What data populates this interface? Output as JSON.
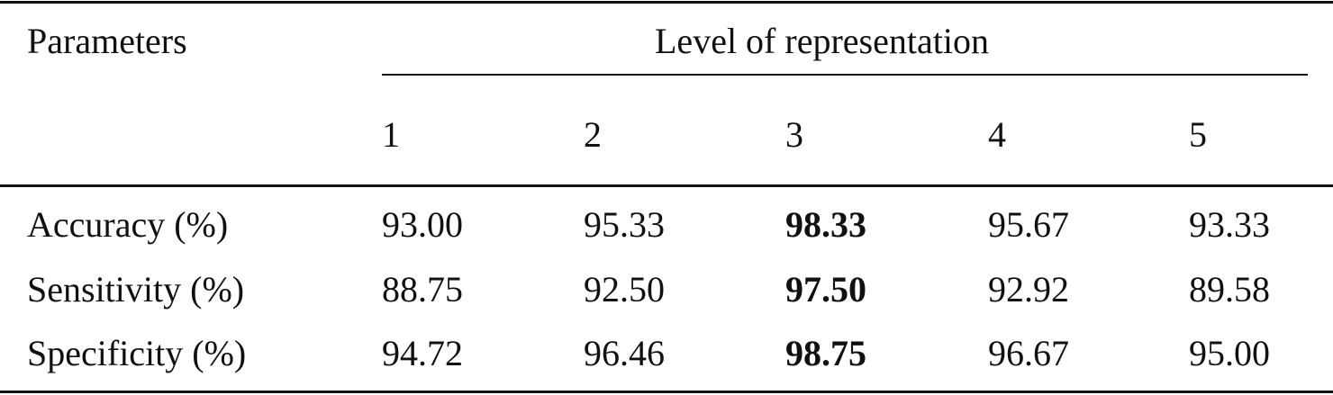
{
  "table": {
    "header": {
      "parameters": "Parameters",
      "group": "Level of representation",
      "levels": [
        "1",
        "2",
        "3",
        "4",
        "5"
      ]
    },
    "rows": [
      {
        "label": "Accuracy (%)",
        "values": [
          "93.00",
          "95.33",
          "98.33",
          "95.67",
          "93.33"
        ]
      },
      {
        "label": "Sensitivity (%)",
        "values": [
          "88.75",
          "92.50",
          "97.50",
          "92.92",
          "89.58"
        ]
      },
      {
        "label": "Specificity (%)",
        "values": [
          "94.72",
          "96.46",
          "98.75",
          "96.67",
          "95.00"
        ]
      }
    ]
  }
}
